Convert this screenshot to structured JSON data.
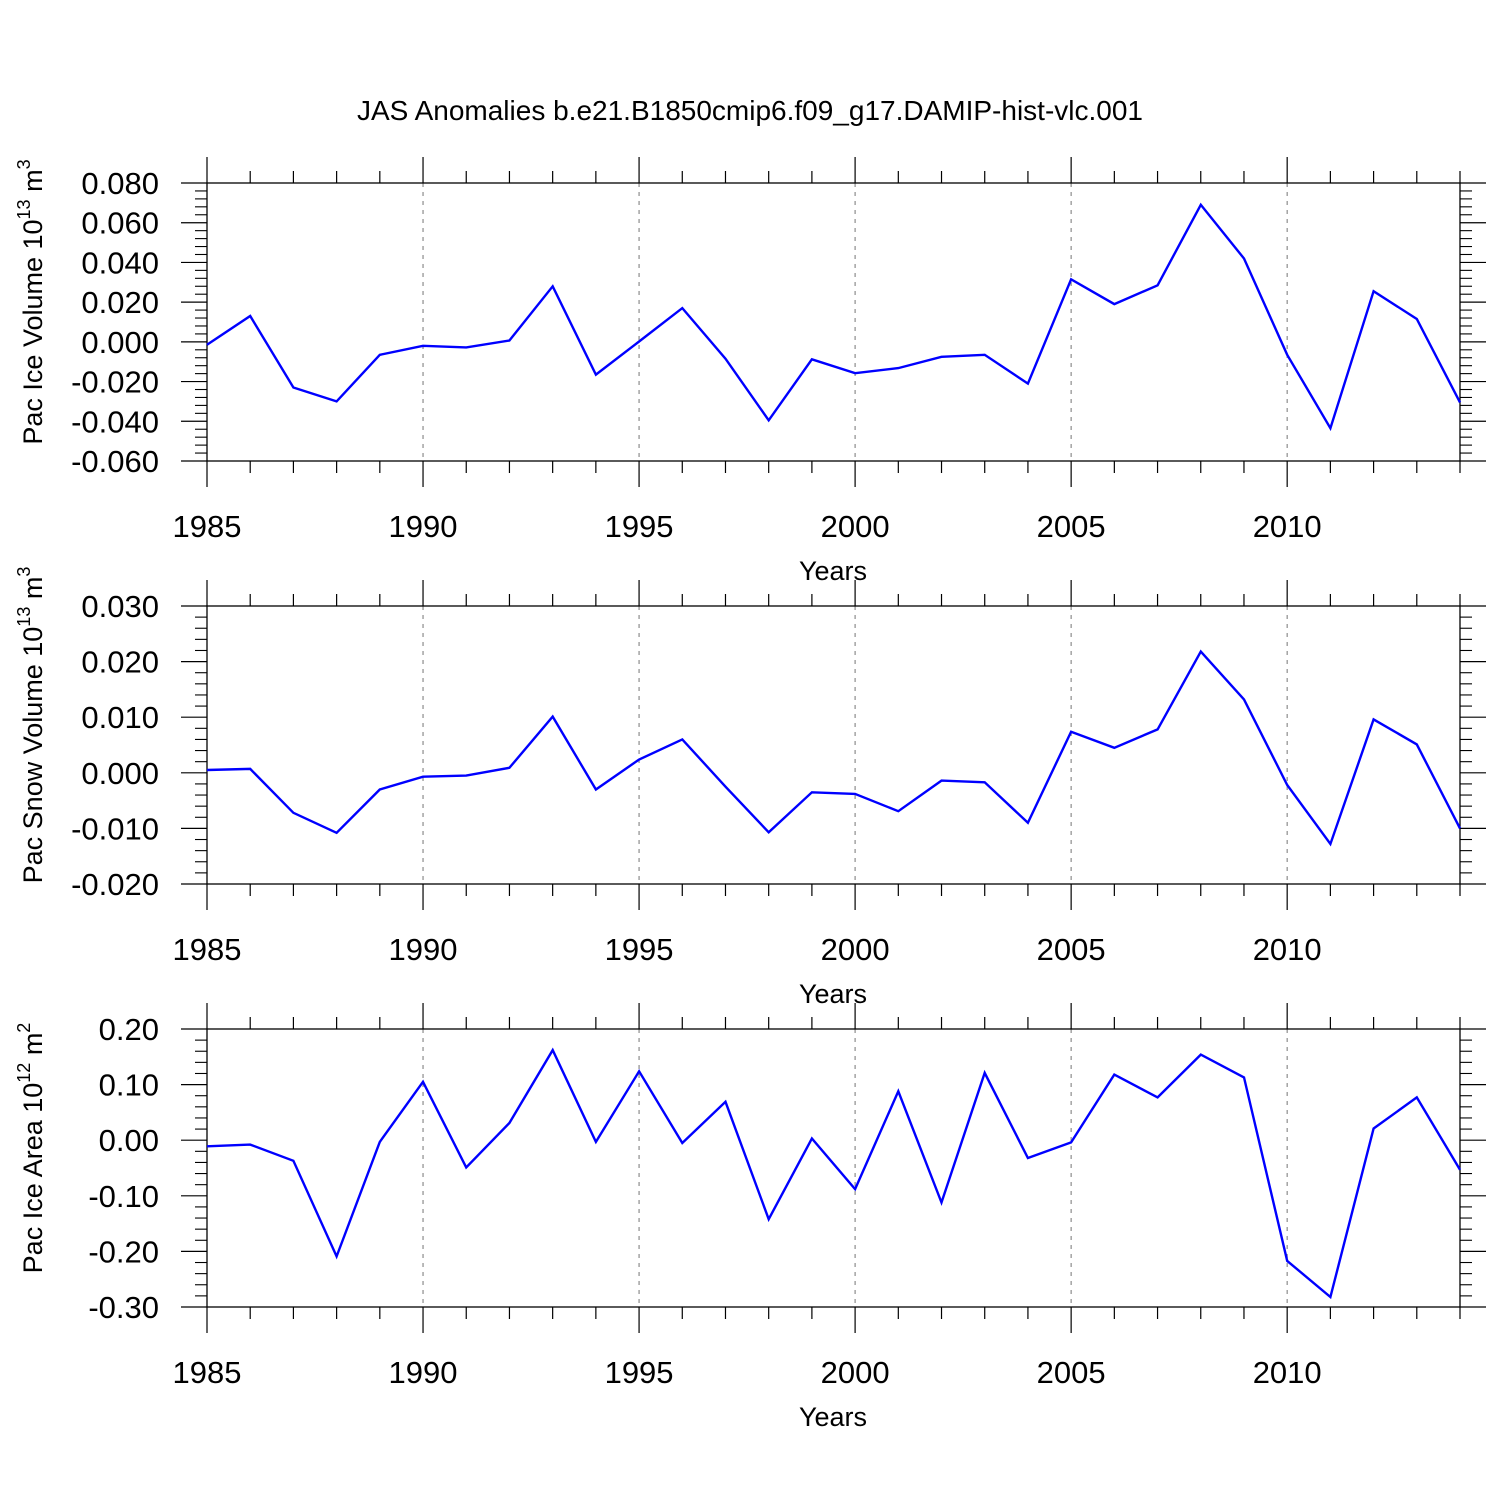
{
  "title": "JAS Anomalies b.e21.B1850cmip6.f09_g17.DAMIP-hist-vlc.001",
  "colors": {
    "line": "#0000ff",
    "axis": "#000000",
    "grid": "#8c8c8c",
    "background": "#ffffff"
  },
  "chart_data": [
    {
      "type": "line",
      "ylabel": "Pac Ice Volume 10",
      "ylabel_sup": "13",
      "ylabel_unit": " m",
      "ylabel_unit_sup": "3",
      "xlabel": "Years",
      "xlim": [
        1985,
        2014
      ],
      "ylim": [
        -0.06,
        0.08
      ],
      "yticks": [
        "0.080",
        "0.060",
        "0.040",
        "0.020",
        "0.000",
        "-0.020",
        "-0.040",
        "-0.060"
      ],
      "ytick_values": [
        0.08,
        0.06,
        0.04,
        0.02,
        0.0,
        -0.02,
        -0.04,
        -0.06
      ],
      "xticks": [
        "1985",
        "1990",
        "1995",
        "2000",
        "2005",
        "2010"
      ],
      "xtick_values": [
        1985,
        1990,
        1995,
        2000,
        2005,
        2010
      ],
      "x": [
        1985,
        1986,
        1987,
        1988,
        1989,
        1990,
        1991,
        1992,
        1993,
        1994,
        1995,
        1996,
        1997,
        1998,
        1999,
        2000,
        2001,
        2002,
        2003,
        2004,
        2005,
        2006,
        2007,
        2008,
        2009,
        2010,
        2011,
        2012,
        2013,
        2014
      ],
      "y": [
        -0.0015,
        0.013,
        -0.023,
        -0.03,
        -0.0065,
        -0.002,
        -0.0028,
        0.0007,
        0.028,
        -0.0165,
        0.0002,
        0.017,
        -0.0085,
        -0.0395,
        -0.0088,
        -0.0158,
        -0.0132,
        -0.0075,
        -0.0065,
        -0.021,
        0.0315,
        0.019,
        0.0285,
        0.069,
        0.042,
        -0.0065,
        -0.0435,
        0.0255,
        0.0115,
        -0.0305
      ],
      "grid": "vertical dashed at major x ticks"
    },
    {
      "type": "line",
      "ylabel": "Pac Snow Volume 10",
      "ylabel_sup": "13",
      "ylabel_unit": " m",
      "ylabel_unit_sup": "3",
      "xlabel": "Years",
      "xlim": [
        1985,
        2014
      ],
      "ylim": [
        -0.02,
        0.03
      ],
      "yticks": [
        "0.030",
        "0.020",
        "0.010",
        "0.000",
        "-0.010",
        "-0.020"
      ],
      "ytick_values": [
        0.03,
        0.02,
        0.01,
        0.0,
        -0.01,
        -0.02
      ],
      "xticks": [
        "1985",
        "1990",
        "1995",
        "2000",
        "2005",
        "2010"
      ],
      "xtick_values": [
        1985,
        1990,
        1995,
        2000,
        2005,
        2010
      ],
      "x": [
        1985,
        1986,
        1987,
        1988,
        1989,
        1990,
        1991,
        1992,
        1993,
        1994,
        1995,
        1996,
        1997,
        1998,
        1999,
        2000,
        2001,
        2002,
        2003,
        2004,
        2005,
        2006,
        2007,
        2008,
        2009,
        2010,
        2011,
        2012,
        2013,
        2014
      ],
      "y": [
        0.0005,
        0.0007,
        -0.0072,
        -0.0108,
        -0.003,
        -0.0007,
        -0.0005,
        0.0009,
        0.0101,
        -0.003,
        0.0024,
        0.006,
        -0.0025,
        -0.0107,
        -0.0035,
        -0.0038,
        -0.0069,
        -0.0014,
        -0.0017,
        -0.009,
        0.0074,
        0.0045,
        0.0078,
        0.0218,
        0.0132,
        -0.0022,
        -0.0128,
        0.0096,
        0.0051,
        -0.01
      ],
      "grid": "vertical dashed at major x ticks"
    },
    {
      "type": "line",
      "ylabel": "Pac Ice Area 10",
      "ylabel_sup": "12",
      "ylabel_unit": " m",
      "ylabel_unit_sup": "2",
      "xlabel": "Years",
      "xlim": [
        1985,
        2014
      ],
      "ylim": [
        -0.3,
        0.2
      ],
      "yticks": [
        "0.20",
        "0.10",
        "0.00",
        "-0.10",
        "-0.20",
        "-0.30"
      ],
      "ytick_values": [
        0.2,
        0.1,
        0.0,
        -0.1,
        -0.2,
        -0.3
      ],
      "xticks": [
        "1985",
        "1990",
        "1995",
        "2000",
        "2005",
        "2010"
      ],
      "xtick_values": [
        1985,
        1990,
        1995,
        2000,
        2005,
        2010
      ],
      "x": [
        1985,
        1986,
        1987,
        1988,
        1989,
        1990,
        1991,
        1992,
        1993,
        1994,
        1995,
        1996,
        1997,
        1998,
        1999,
        2000,
        2001,
        2002,
        2003,
        2004,
        2005,
        2006,
        2007,
        2008,
        2009,
        2010,
        2011,
        2012,
        2013,
        2014
      ],
      "y": [
        -0.011,
        -0.008,
        -0.037,
        -0.209,
        -0.003,
        0.105,
        -0.049,
        0.031,
        0.162,
        -0.003,
        0.124,
        -0.005,
        0.069,
        -0.142,
        0.003,
        -0.088,
        0.088,
        -0.112,
        0.121,
        -0.032,
        -0.004,
        0.118,
        0.077,
        0.154,
        0.113,
        -0.217,
        -0.282,
        0.021,
        0.077,
        -0.053
      ],
      "grid": "vertical dashed at major x ticks"
    }
  ]
}
